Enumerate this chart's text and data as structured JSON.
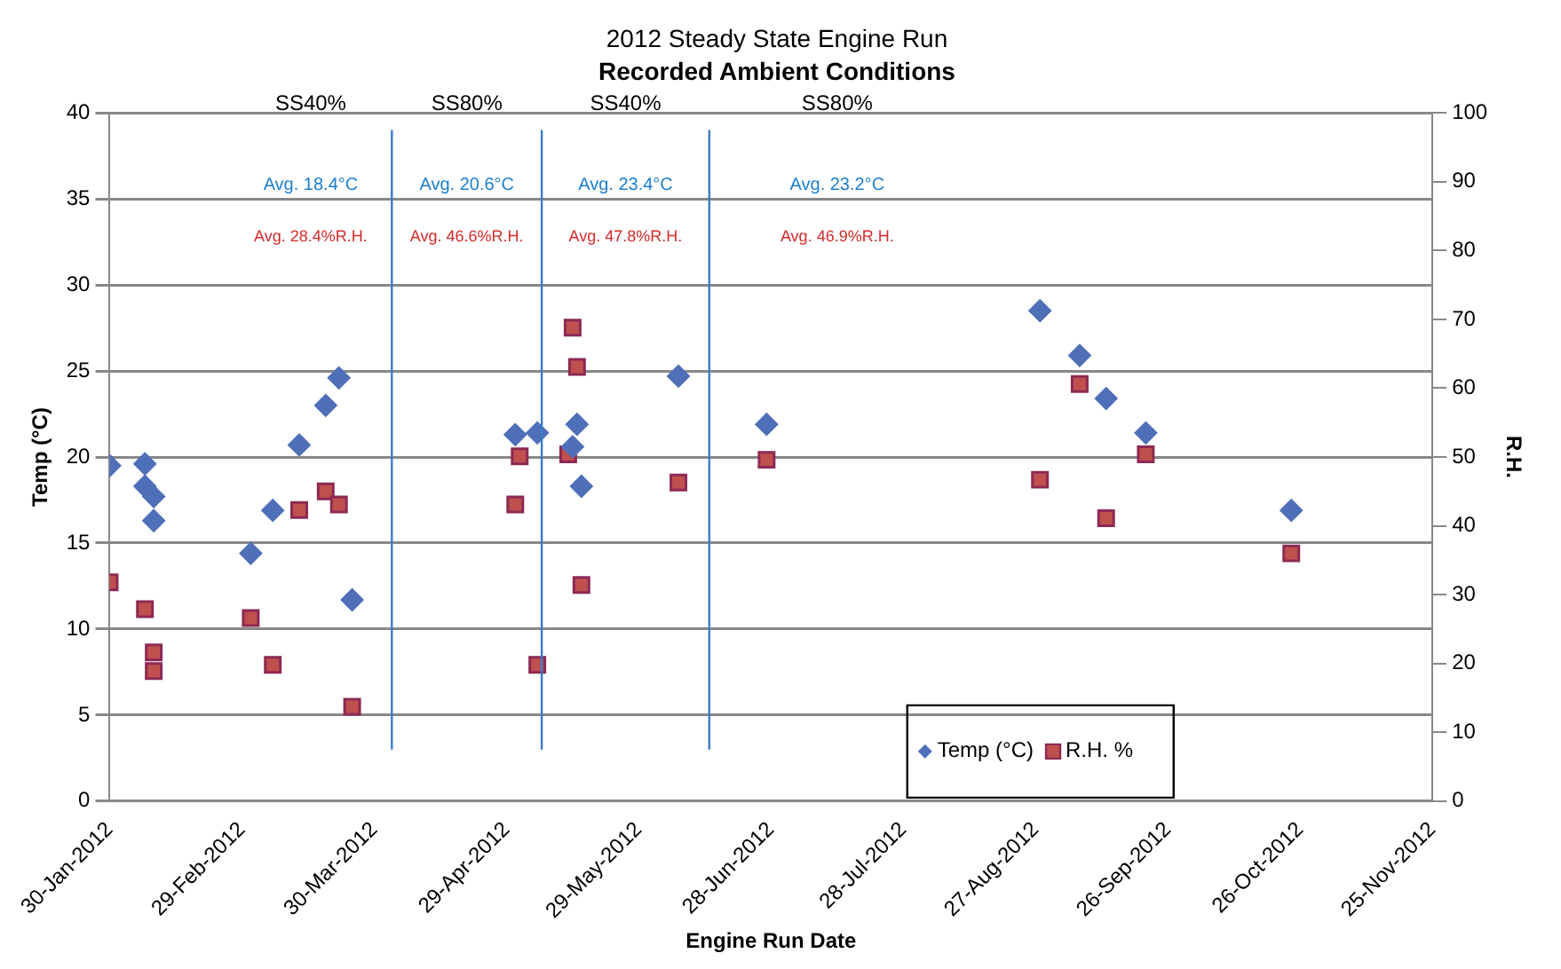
{
  "chart_data": {
    "type": "scatter",
    "title": "2012 Steady State Engine Run",
    "subtitle": "Recorded Ambient Conditions",
    "xlabel": "Engine Run Date",
    "ylabel": "Temp (°C)",
    "y2label": "R.H.",
    "xlim": [
      "2012-01-30",
      "2012-11-25"
    ],
    "xticks": [
      {
        "value": "2012-01-30",
        "label": "30-Jan-2012"
      },
      {
        "value": "2012-02-29",
        "label": "29-Feb-2012"
      },
      {
        "value": "2012-03-30",
        "label": "30-Mar-2012"
      },
      {
        "value": "2012-04-29",
        "label": "29-Apr-2012"
      },
      {
        "value": "2012-05-29",
        "label": "29-May-2012"
      },
      {
        "value": "2012-06-28",
        "label": "28-Jun-2012"
      },
      {
        "value": "2012-07-28",
        "label": "28-Jul-2012"
      },
      {
        "value": "2012-08-27",
        "label": "27-Aug-2012"
      },
      {
        "value": "2012-09-26",
        "label": "26-Sep-2012"
      },
      {
        "value": "2012-10-26",
        "label": "26-Oct-2012"
      },
      {
        "value": "2012-11-25",
        "label": "25-Nov-2012"
      }
    ],
    "ylim": [
      0,
      40
    ],
    "yticks": [
      0,
      5,
      10,
      15,
      20,
      25,
      30,
      35,
      40
    ],
    "y2lim": [
      0,
      100
    ],
    "y2ticks": [
      0,
      10,
      20,
      30,
      40,
      50,
      60,
      70,
      80,
      90,
      100
    ],
    "grid": "y",
    "legend": "bottom right",
    "series": [
      {
        "name": "Temp (°C)",
        "color": "#4f6fb8",
        "marker": "diamond",
        "x": [
          "2012-01-30",
          "2012-02-07",
          "2012-02-07",
          "2012-02-09",
          "2012-02-09",
          "2012-03-02",
          "2012-03-07",
          "2012-03-13",
          "2012-03-19",
          "2012-03-22",
          "2012-03-25",
          "2012-05-01",
          "2012-05-06",
          "2012-05-14",
          "2012-05-15",
          "2012-05-16",
          "2012-06-07",
          "2012-06-27",
          "2012-08-28",
          "2012-09-06",
          "2012-09-12",
          "2012-09-21",
          "2012-10-24"
        ],
        "values": [
          19.5,
          19.6,
          18.3,
          17.7,
          16.3,
          14.4,
          16.9,
          20.7,
          23.0,
          24.6,
          11.7,
          21.3,
          21.4,
          20.6,
          21.9,
          18.3,
          24.7,
          21.9,
          28.5,
          25.9,
          23.4,
          21.4,
          16.9
        ]
      },
      {
        "name": "R.H. %",
        "color": "#c0504d",
        "marker": "square",
        "axis": "y2",
        "x": [
          "2012-01-30",
          "2012-02-07",
          "2012-02-09",
          "2012-02-09",
          "2012-03-02",
          "2012-03-07",
          "2012-03-13",
          "2012-03-19",
          "2012-03-22",
          "2012-03-25",
          "2012-05-01",
          "2012-05-02",
          "2012-05-06",
          "2012-05-13",
          "2012-05-14",
          "2012-05-15",
          "2012-05-16",
          "2012-06-07",
          "2012-06-27",
          "2012-08-28",
          "2012-09-06",
          "2012-09-12",
          "2012-09-21",
          "2012-10-24"
        ],
        "values": [
          31.8,
          27.9,
          21.6,
          18.9,
          26.6,
          19.8,
          42.3,
          45.0,
          43.1,
          13.7,
          43.1,
          50.1,
          19.8,
          50.4,
          68.8,
          63.1,
          31.4,
          46.3,
          49.6,
          46.7,
          60.6,
          41.1,
          50.4,
          36.0
        ]
      }
    ],
    "ref_lines": [
      {
        "axis": "x",
        "value": "2012-04-03",
        "color": "#3a7dc9"
      },
      {
        "axis": "x",
        "value": "2012-05-07",
        "color": "#3a7dc9"
      },
      {
        "axis": "x",
        "value": "2012-06-14",
        "color": "#3a7dc9"
      }
    ],
    "annotations": [
      "SS40%",
      "SS80%",
      "SS40%",
      "SS80%",
      "Avg. 18.4°C",
      "Avg. 20.6°C",
      "Avg. 23.4°C",
      "Avg. 23.2°C",
      "Avg. 28.4%R.H.",
      "Avg. 46.6%R.H.",
      "Avg. 47.8%R.H.",
      "Avg. 46.9%R.H."
    ]
  }
}
